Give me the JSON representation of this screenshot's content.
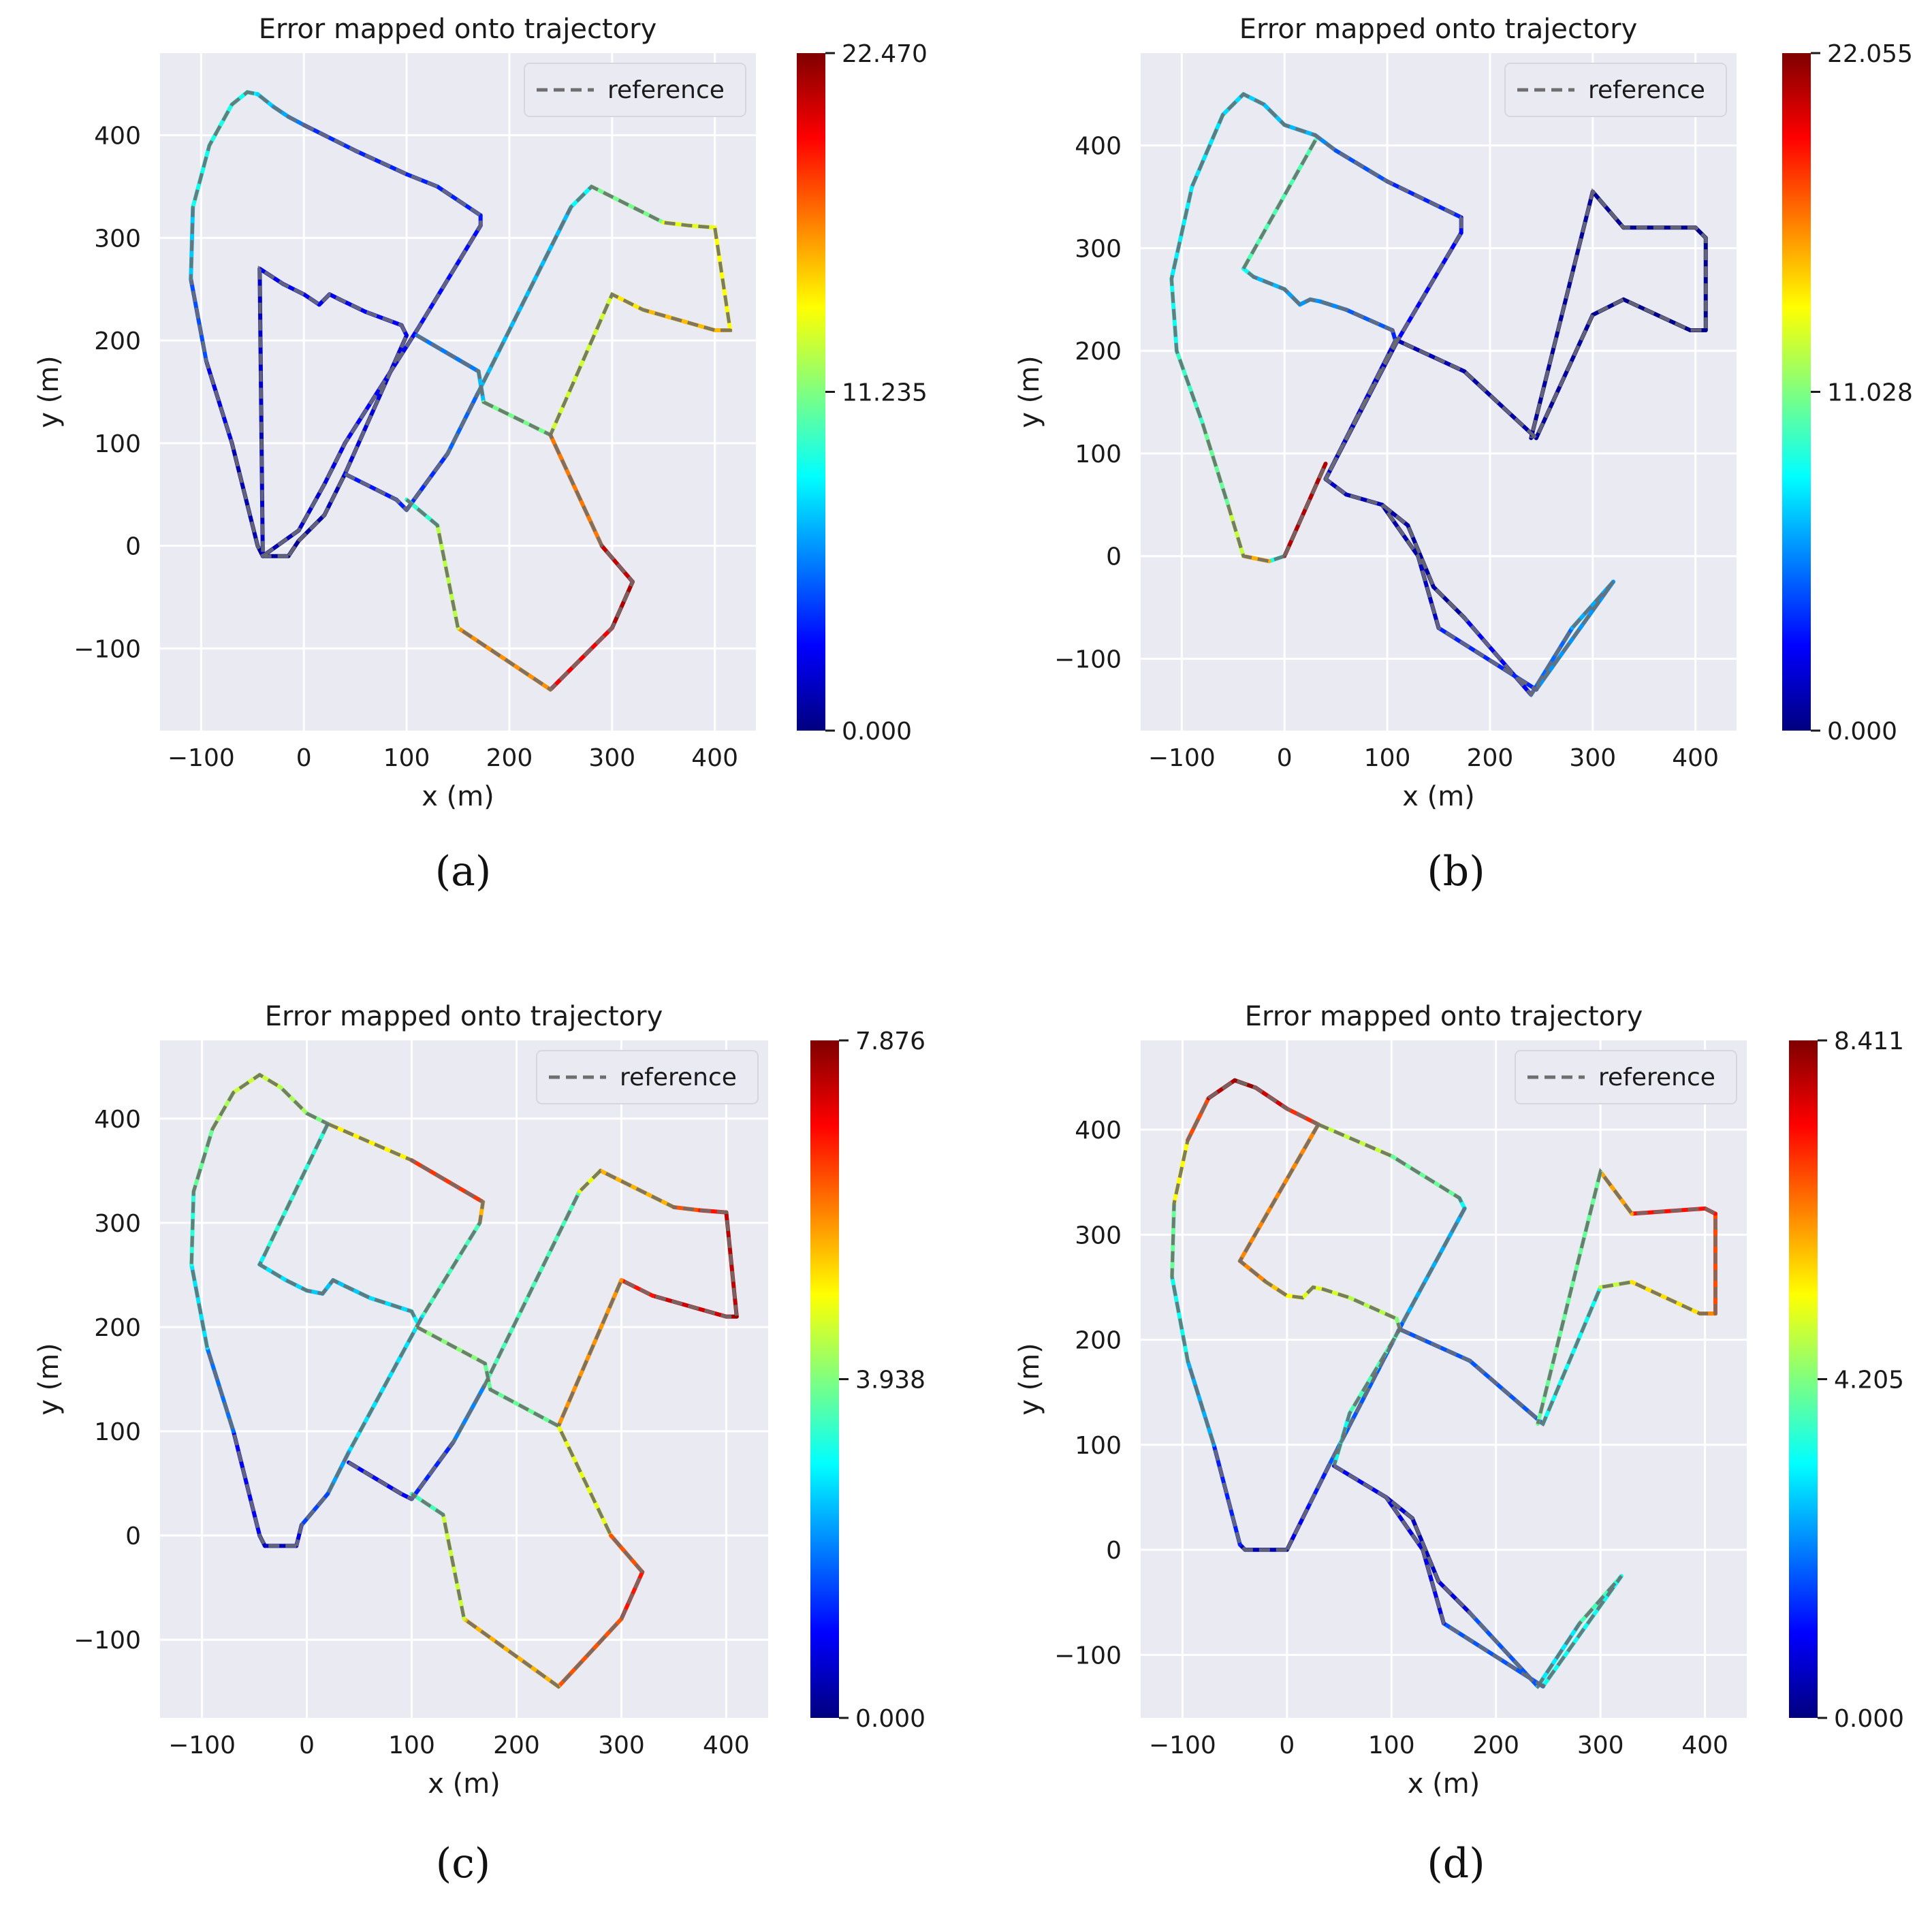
{
  "chart_data": [
    {
      "type": "line",
      "title": "Error mapped onto trajectory",
      "xlabel": "x (m)",
      "ylabel": "y (m)",
      "xlim": [
        -140,
        440
      ],
      "ylim": [
        -180,
        480
      ],
      "xticks": [
        -100,
        0,
        100,
        200,
        300,
        400
      ],
      "yticks": [
        -100,
        0,
        100,
        200,
        300,
        400
      ],
      "grid": true,
      "legend": {
        "entries": [
          "reference"
        ],
        "placement": "top-right",
        "style": "dashed gray"
      },
      "colorbar": {
        "colormap": "jet",
        "min": 0.0,
        "max": 22.47,
        "tick_labels": [
          "22.470",
          "11.235",
          "0.000"
        ]
      },
      "subfigure_label": "(a)",
      "series": [
        {
          "x": [
            -15,
            -40,
            -45,
            -70,
            -95,
            -110,
            -108,
            -92,
            -70,
            -55,
            -45,
            -30,
            -15,
            0
          ],
          "y": [
            -10,
            -10,
            0,
            100,
            180,
            260,
            330,
            390,
            430,
            442,
            440,
            428,
            418,
            410
          ],
          "error": [
            0.5,
            0.5,
            0.6,
            1.5,
            3.0,
            6.0,
            8.5,
            9.0,
            9.0,
            8.5,
            8.0,
            7.0,
            6.0,
            5.0
          ]
        },
        {
          "x": [
            0,
            50,
            100,
            130,
            172,
            172,
            110,
            40,
            20,
            -5,
            -40,
            -43,
            -20,
            0,
            15,
            25,
            35,
            60,
            95,
            100,
            40,
            20,
            -5,
            -15
          ],
          "y": [
            410,
            385,
            362,
            350,
            322,
            312,
            210,
            100,
            60,
            15,
            -10,
            270,
            255,
            245,
            235,
            245,
            240,
            228,
            215,
            205,
            70,
            30,
            5,
            -10
          ],
          "error": [
            4.0,
            3.5,
            3.5,
            3.5,
            3.5,
            3.0,
            3.0,
            2.5,
            2.0,
            1.5,
            0.8,
            2.5,
            2.5,
            2.5,
            2.5,
            2.5,
            2.5,
            2.5,
            3.0,
            2.5,
            1.5,
            1.0,
            0.5,
            0.5
          ]
        },
        {
          "x": [
            40,
            90,
            100,
            140,
            170,
            260,
            280,
            350,
            375,
            400,
            415,
            400,
            330,
            300,
            240
          ],
          "y": [
            70,
            45,
            35,
            90,
            150,
            330,
            350,
            315,
            312,
            310,
            210,
            210,
            230,
            245,
            108
          ],
          "error": [
            3.0,
            3.5,
            3.5,
            4.0,
            6.0,
            8.0,
            9.0,
            13.0,
            14.0,
            13.0,
            15.0,
            16.0,
            15.0,
            14.0,
            12.0
          ]
        },
        {
          "x": [
            110,
            170,
            175,
            240,
            290,
            320,
            300,
            240,
            150,
            130,
            100
          ],
          "y": [
            205,
            170,
            140,
            108,
            0,
            -35,
            -80,
            -140,
            -80,
            20,
            45
          ],
          "error": [
            5.0,
            6.0,
            8.0,
            14.0,
            20.0,
            22.0,
            21.0,
            19.0,
            14.0,
            11.0,
            8.0
          ]
        }
      ]
    },
    {
      "type": "line",
      "title": "Error mapped onto trajectory",
      "xlabel": "x (m)",
      "ylabel": "y (m)",
      "xlim": [
        -140,
        440
      ],
      "ylim": [
        -170,
        490
      ],
      "xticks": [
        -100,
        0,
        100,
        200,
        300,
        400
      ],
      "yticks": [
        -100,
        0,
        100,
        200,
        300,
        400
      ],
      "grid": true,
      "legend": {
        "entries": [
          "reference"
        ],
        "placement": "top-right",
        "style": "dashed gray"
      },
      "colorbar": {
        "colormap": "jet",
        "min": 0.0,
        "max": 22.055,
        "tick_labels": [
          "22.055",
          "11.028",
          "0.000"
        ]
      },
      "subfigure_label": "(b)",
      "series": [
        {
          "x": [
            0,
            -15,
            -40,
            -55,
            -80,
            -105,
            -110,
            -90,
            -60,
            -40,
            -20,
            0,
            30,
            50,
            100,
            172
          ],
          "y": [
            0,
            -5,
            0,
            50,
            130,
            200,
            270,
            360,
            430,
            450,
            440,
            420,
            410,
            395,
            365,
            330
          ],
          "error": [
            0.5,
            17.0,
            14.0,
            11.0,
            10.0,
            9.0,
            8.0,
            8.0,
            7.5,
            7.5,
            7.0,
            7.0,
            6.5,
            5.0,
            4.0,
            3.0
          ]
        },
        {
          "x": [
            0,
            40
          ],
          "y": [
            0,
            90
          ],
          "error": [
            20.0,
            22.0
          ]
        },
        {
          "x": [
            30,
            -40,
            -30,
            0,
            15,
            25,
            35,
            60,
            105,
            108,
            40,
            60,
            95,
            120,
            145,
            175,
            240,
            280,
            320,
            320,
            245,
            150,
            130,
            95
          ],
          "y": [
            405,
            280,
            272,
            260,
            245,
            250,
            248,
            240,
            220,
            210,
            75,
            60,
            50,
            30,
            -30,
            -60,
            -135,
            -70,
            -25,
            -25,
            -130,
            -70,
            0,
            50
          ],
          "error": [
            10.0,
            10.0,
            7.0,
            6.5,
            6.0,
            6.0,
            6.0,
            5.5,
            4.0,
            3.0,
            1.5,
            1.5,
            1.0,
            0.8,
            0.5,
            1.0,
            4.0,
            6.0,
            7.0,
            7.0,
            5.0,
            2.0,
            1.0,
            0.8
          ]
        },
        {
          "x": [
            172,
            172,
            110,
            40,
            110,
            175,
            245,
            300,
            330,
            395,
            410,
            410,
            400,
            330,
            300,
            240
          ],
          "y": [
            330,
            315,
            210,
            75,
            210,
            180,
            115,
            235,
            250,
            220,
            220,
            310,
            320,
            320,
            355,
            115
          ],
          "error": [
            3.0,
            3.0,
            2.5,
            1.5,
            1.5,
            1.0,
            0.8,
            0.5,
            0.3,
            0.3,
            0.3,
            0.3,
            0.3,
            0.5,
            0.5,
            0.8
          ]
        }
      ]
    },
    {
      "type": "line",
      "title": "Error mapped onto trajectory",
      "xlabel": "x (m)",
      "ylabel": "y (m)",
      "xlim": [
        -140,
        440
      ],
      "ylim": [
        -175,
        475
      ],
      "xticks": [
        -100,
        0,
        100,
        200,
        300,
        400
      ],
      "yticks": [
        -100,
        0,
        100,
        200,
        300,
        400
      ],
      "grid": true,
      "legend": {
        "entries": [
          "reference"
        ],
        "placement": "top-right",
        "style": "dashed gray"
      },
      "colorbar": {
        "colormap": "jet",
        "min": 0.0,
        "max": 7.876,
        "tick_labels": [
          "7.876",
          "3.938",
          "0.000"
        ]
      },
      "subfigure_label": "(c)",
      "series": [
        {
          "x": [
            -10,
            -40,
            -45,
            -70,
            -95,
            -110,
            -108,
            -90,
            -70,
            -45,
            -25,
            0,
            20
          ],
          "y": [
            -10,
            -10,
            0,
            100,
            180,
            260,
            330,
            390,
            425,
            442,
            430,
            405,
            395
          ],
          "error": [
            0.5,
            0.5,
            0.6,
            1.2,
            2.5,
            3.0,
            3.5,
            4.0,
            4.5,
            4.5,
            4.5,
            4.0,
            3.8
          ]
        },
        {
          "x": [
            20,
            100,
            168,
            165,
            110,
            40,
            20,
            -5,
            -10
          ],
          "y": [
            395,
            360,
            320,
            300,
            210,
            80,
            40,
            10,
            -10
          ],
          "error": [
            4.0,
            6.0,
            7.0,
            4.0,
            3.0,
            2.5,
            2.0,
            1.0,
            0.5
          ]
        },
        {
          "x": [
            20,
            -40,
            -45,
            -20,
            0,
            15,
            25,
            35,
            60,
            100,
            105
          ],
          "y": [
            395,
            270,
            260,
            245,
            235,
            232,
            245,
            240,
            228,
            215,
            205
          ],
          "error": [
            3.5,
            3.0,
            2.8,
            2.7,
            2.6,
            2.5,
            2.5,
            2.5,
            2.6,
            2.8,
            3.0
          ]
        },
        {
          "x": [
            40,
            90,
            100,
            140,
            170,
            260,
            280,
            350,
            375,
            400,
            410,
            400,
            330,
            300,
            240
          ],
          "y": [
            70,
            40,
            35,
            90,
            145,
            330,
            350,
            315,
            312,
            310,
            210,
            210,
            230,
            245,
            105
          ],
          "error": [
            1.0,
            0.8,
            1.0,
            1.5,
            2.5,
            4.5,
            5.0,
            6.0,
            6.5,
            7.0,
            7.8,
            7.5,
            7.0,
            6.5,
            5.0
          ]
        },
        {
          "x": [
            105,
            170,
            175,
            240,
            290,
            320,
            300,
            240,
            150,
            130,
            100
          ],
          "y": [
            200,
            165,
            140,
            105,
            0,
            -35,
            -80,
            -145,
            -80,
            20,
            40
          ],
          "error": [
            4.0,
            4.0,
            3.5,
            4.0,
            5.5,
            7.0,
            6.5,
            6.0,
            5.0,
            4.0,
            3.0
          ]
        }
      ]
    },
    {
      "type": "line",
      "title": "Error mapped onto trajectory",
      "xlabel": "x (m)",
      "ylabel": "y (m)",
      "xlim": [
        -140,
        440
      ],
      "ylim": [
        -160,
        485
      ],
      "xticks": [
        -100,
        0,
        100,
        200,
        300,
        400
      ],
      "yticks": [
        -100,
        0,
        100,
        200,
        300,
        400
      ],
      "grid": true,
      "legend": {
        "entries": [
          "reference"
        ],
        "placement": "top-right",
        "style": "dashed gray"
      },
      "colorbar": {
        "colormap": "jet",
        "min": 0.0,
        "max": 8.411,
        "tick_labels": [
          "8.411",
          "4.205",
          "0.000"
        ]
      },
      "subfigure_label": "(d)",
      "series": [
        {
          "x": [
            0,
            -40,
            -45,
            -70,
            -95,
            -110,
            -108,
            -95,
            -75,
            -50,
            -30,
            0,
            30
          ],
          "y": [
            0,
            0,
            5,
            100,
            180,
            260,
            330,
            390,
            430,
            447,
            440,
            420,
            405
          ],
          "error": [
            0.5,
            0.5,
            0.6,
            2.0,
            3.0,
            3.5,
            4.5,
            6.0,
            7.5,
            8.4,
            8.0,
            7.5,
            6.5
          ]
        },
        {
          "x": [
            30,
            100,
            165,
            170,
            110,
            40,
            20,
            5,
            0
          ],
          "y": [
            405,
            375,
            335,
            325,
            215,
            80,
            40,
            10,
            0
          ],
          "error": [
            5.0,
            4.5,
            3.5,
            3.0,
            2.0,
            1.5,
            1.0,
            0.8,
            0.5
          ]
        },
        {
          "x": [
            30,
            -45,
            -20,
            0,
            15,
            25,
            35,
            60,
            105,
            108,
            60,
            45
          ],
          "y": [
            405,
            275,
            255,
            242,
            240,
            250,
            248,
            240,
            220,
            210,
            130,
            80
          ],
          "error": [
            6.0,
            6.5,
            6.0,
            5.5,
            5.0,
            5.0,
            5.0,
            4.8,
            4.5,
            4.0,
            3.5,
            3.0
          ]
        },
        {
          "x": [
            45,
            95,
            120,
            145,
            175,
            240,
            280,
            320,
            320,
            245,
            150,
            130,
            95
          ],
          "y": [
            80,
            50,
            30,
            -30,
            -60,
            -130,
            -70,
            -25,
            -25,
            -130,
            -70,
            0,
            50
          ],
          "error": [
            1.0,
            0.8,
            0.6,
            0.5,
            1.0,
            2.5,
            3.5,
            4.0,
            4.0,
            2.5,
            1.0,
            0.8,
            0.8
          ]
        },
        {
          "x": [
            108,
            175,
            245,
            300,
            330,
            395,
            410,
            410,
            400,
            330,
            300,
            240
          ],
          "y": [
            210,
            180,
            120,
            250,
            255,
            225,
            225,
            320,
            325,
            320,
            360,
            120
          ],
          "error": [
            2.0,
            1.5,
            2.0,
            4.5,
            5.0,
            6.0,
            6.5,
            7.0,
            7.5,
            7.0,
            5.0,
            3.0
          ]
        }
      ]
    }
  ]
}
